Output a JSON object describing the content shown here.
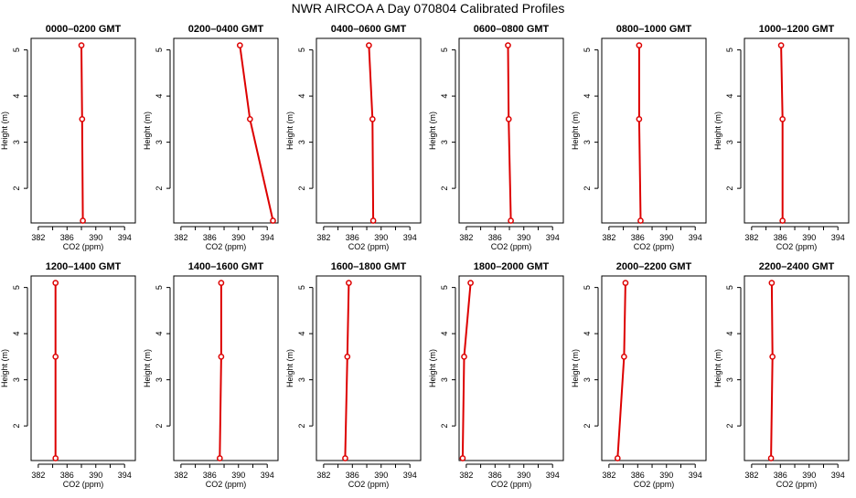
{
  "figure": {
    "title": "NWR AIRCOA A  Day 070804  Calibrated Profiles"
  },
  "colors": {
    "series": "#dd0000",
    "axes": "#000000"
  },
  "chart_data": [
    {
      "type": "line",
      "title": "0000–0200 GMT",
      "xlabel": "CO2 (ppm)",
      "ylabel": "Height (m)",
      "xlim": [
        381,
        395.5
      ],
      "ylim": [
        1.25,
        5.25
      ],
      "xticks": [
        382,
        384,
        386,
        388,
        390,
        392,
        394
      ],
      "xtick_labels": [
        "382",
        "",
        "386",
        "",
        "390",
        "",
        "394"
      ],
      "yticks": [
        2,
        3,
        4,
        5
      ],
      "x": [
        388.0,
        388.1,
        388.2
      ],
      "y": [
        5.1,
        3.5,
        1.3
      ]
    },
    {
      "type": "line",
      "title": "0200–0400 GMT",
      "xlabel": "CO2 (ppm)",
      "ylabel": "Height (m)",
      "xlim": [
        381,
        395.5
      ],
      "ylim": [
        1.25,
        5.25
      ],
      "xticks": [
        382,
        384,
        386,
        388,
        390,
        392,
        394
      ],
      "xtick_labels": [
        "382",
        "",
        "386",
        "",
        "390",
        "",
        "394"
      ],
      "yticks": [
        2,
        3,
        4,
        5
      ],
      "x": [
        390.2,
        391.6,
        394.8
      ],
      "y": [
        5.1,
        3.5,
        1.3
      ]
    },
    {
      "type": "line",
      "title": "0400–0600 GMT",
      "xlabel": "CO2 (ppm)",
      "ylabel": "Height (m)",
      "xlim": [
        381,
        395.5
      ],
      "ylim": [
        1.25,
        5.25
      ],
      "xticks": [
        382,
        384,
        386,
        388,
        390,
        392,
        394
      ],
      "xtick_labels": [
        "382",
        "",
        "386",
        "",
        "390",
        "",
        "394"
      ],
      "yticks": [
        2,
        3,
        4,
        5
      ],
      "x": [
        388.3,
        388.8,
        388.9
      ],
      "y": [
        5.1,
        3.5,
        1.3
      ]
    },
    {
      "type": "line",
      "title": "0600–0800 GMT",
      "xlabel": "CO2 (ppm)",
      "ylabel": "Height (m)",
      "xlim": [
        381,
        395.5
      ],
      "ylim": [
        1.25,
        5.25
      ],
      "xticks": [
        382,
        384,
        386,
        388,
        390,
        392,
        394
      ],
      "xtick_labels": [
        "382",
        "",
        "386",
        "",
        "390",
        "",
        "394"
      ],
      "yticks": [
        2,
        3,
        4,
        5
      ],
      "x": [
        387.8,
        387.9,
        388.2
      ],
      "y": [
        5.1,
        3.5,
        1.3
      ]
    },
    {
      "type": "line",
      "title": "0800–1000 GMT",
      "xlabel": "CO2 (ppm)",
      "ylabel": "Height (m)",
      "xlim": [
        381,
        395.5
      ],
      "ylim": [
        1.25,
        5.25
      ],
      "xticks": [
        382,
        384,
        386,
        388,
        390,
        392,
        394
      ],
      "xtick_labels": [
        "382",
        "",
        "386",
        "",
        "390",
        "",
        "394"
      ],
      "yticks": [
        2,
        3,
        4,
        5
      ],
      "x": [
        386.2,
        386.2,
        386.4
      ],
      "y": [
        5.1,
        3.5,
        1.3
      ]
    },
    {
      "type": "line",
      "title": "1000–1200 GMT",
      "xlabel": "CO2 (ppm)",
      "ylabel": "Height (m)",
      "xlim": [
        381,
        395.5
      ],
      "ylim": [
        1.25,
        5.25
      ],
      "xticks": [
        382,
        384,
        386,
        388,
        390,
        392,
        394
      ],
      "xtick_labels": [
        "382",
        "",
        "386",
        "",
        "390",
        "",
        "394"
      ],
      "yticks": [
        2,
        3,
        4,
        5
      ],
      "x": [
        386.1,
        386.3,
        386.3
      ],
      "y": [
        5.1,
        3.5,
        1.3
      ]
    },
    {
      "type": "line",
      "title": "1200–1400 GMT",
      "xlabel": "CO2 (ppm)",
      "ylabel": "Height (m)",
      "xlim": [
        381,
        395.5
      ],
      "ylim": [
        1.25,
        5.25
      ],
      "xticks": [
        382,
        384,
        386,
        388,
        390,
        392,
        394
      ],
      "xtick_labels": [
        "382",
        "",
        "386",
        "",
        "390",
        "",
        "394"
      ],
      "yticks": [
        2,
        3,
        4,
        5
      ],
      "x": [
        384.4,
        384.4,
        384.4
      ],
      "y": [
        5.1,
        3.5,
        1.3
      ]
    },
    {
      "type": "line",
      "title": "1400–1600 GMT",
      "xlabel": "CO2 (ppm)",
      "ylabel": "Height (m)",
      "xlim": [
        381,
        395.5
      ],
      "ylim": [
        1.25,
        5.25
      ],
      "xticks": [
        382,
        384,
        386,
        388,
        390,
        392,
        394
      ],
      "xtick_labels": [
        "382",
        "",
        "386",
        "",
        "390",
        "",
        "394"
      ],
      "yticks": [
        2,
        3,
        4,
        5
      ],
      "x": [
        387.6,
        387.6,
        387.4
      ],
      "y": [
        5.1,
        3.5,
        1.3
      ]
    },
    {
      "type": "line",
      "title": "1600–1800 GMT",
      "xlabel": "CO2 (ppm)",
      "ylabel": "Height (m)",
      "xlim": [
        381,
        395.5
      ],
      "ylim": [
        1.25,
        5.25
      ],
      "xticks": [
        382,
        384,
        386,
        388,
        390,
        392,
        394
      ],
      "xtick_labels": [
        "382",
        "",
        "386",
        "",
        "390",
        "",
        "394"
      ],
      "yticks": [
        2,
        3,
        4,
        5
      ],
      "x": [
        385.5,
        385.3,
        385.0
      ],
      "y": [
        5.1,
        3.5,
        1.3
      ]
    },
    {
      "type": "line",
      "title": "1800–2000 GMT",
      "xlabel": "CO2 (ppm)",
      "ylabel": "Height (m)",
      "xlim": [
        381,
        395.5
      ],
      "ylim": [
        1.25,
        5.25
      ],
      "xticks": [
        382,
        384,
        386,
        388,
        390,
        392,
        394
      ],
      "xtick_labels": [
        "382",
        "",
        "386",
        "",
        "390",
        "",
        "394"
      ],
      "yticks": [
        2,
        3,
        4,
        5
      ],
      "x": [
        382.6,
        381.7,
        381.5
      ],
      "y": [
        5.1,
        3.5,
        1.3
      ]
    },
    {
      "type": "line",
      "title": "2000–2200 GMT",
      "xlabel": "CO2 (ppm)",
      "ylabel": "Height (m)",
      "xlim": [
        381,
        395.5
      ],
      "ylim": [
        1.25,
        5.25
      ],
      "xticks": [
        382,
        384,
        386,
        388,
        390,
        392,
        394
      ],
      "xtick_labels": [
        "382",
        "",
        "386",
        "",
        "390",
        "",
        "394"
      ],
      "yticks": [
        2,
        3,
        4,
        5
      ],
      "x": [
        384.3,
        384.1,
        383.2
      ],
      "y": [
        5.1,
        3.5,
        1.3
      ]
    },
    {
      "type": "line",
      "title": "2200–2400 GMT",
      "xlabel": "CO2 (ppm)",
      "ylabel": "Height (m)",
      "xlim": [
        381,
        395.5
      ],
      "ylim": [
        1.25,
        5.25
      ],
      "xticks": [
        382,
        384,
        386,
        388,
        390,
        392,
        394
      ],
      "xtick_labels": [
        "382",
        "",
        "386",
        "",
        "390",
        "",
        "394"
      ],
      "yticks": [
        2,
        3,
        4,
        5
      ],
      "x": [
        384.8,
        384.9,
        384.7
      ],
      "y": [
        5.1,
        3.5,
        1.3
      ]
    }
  ]
}
